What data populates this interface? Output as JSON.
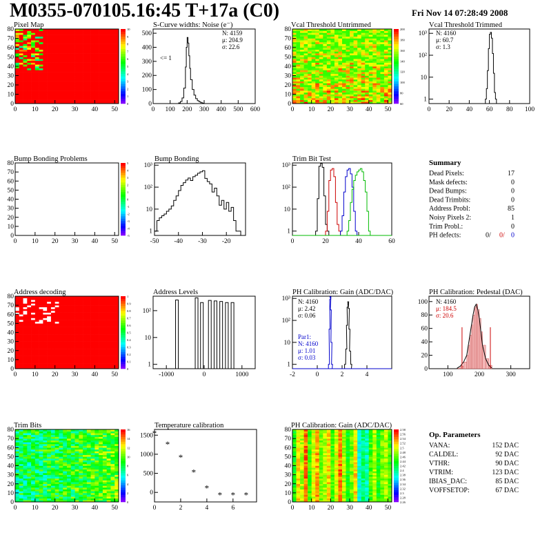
{
  "header": {
    "title": "M0355-070105.16:45 T+17a (C0)",
    "date": "Fri Nov 14 07:28:49 2008"
  },
  "panels": {
    "pixel_map": {
      "title": "Pixel Map",
      "type": "heatmap",
      "xticks": [
        "0",
        "10",
        "20",
        "30",
        "40",
        "50"
      ],
      "yticks": [
        "0",
        "10",
        "20",
        "30",
        "40",
        "50",
        "60",
        "70",
        "80"
      ],
      "zticks": [
        "0",
        "1",
        "2",
        "3",
        "4",
        "5",
        "6",
        "7",
        "8",
        "9",
        "10"
      ],
      "fill": "#ff0000",
      "noise_region": "left columns rows 40-80"
    },
    "scurve": {
      "title": "S-Curve widths: Noise (e⁻)",
      "type": "histogram",
      "xticks": [
        "0",
        "100",
        "200",
        "300",
        "400",
        "500",
        "600"
      ],
      "yticks": [
        "0",
        "100",
        "200",
        "300",
        "400",
        "500"
      ],
      "stats": [
        "N: 4159",
        "μ: 204.9",
        "σ: 22.6"
      ],
      "annotation": "<= 1",
      "chart_data": {
        "x": [
          150,
          160,
          170,
          180,
          190,
          195,
          200,
          205,
          210,
          215,
          220,
          230,
          240,
          250,
          260,
          270,
          280,
          290,
          300
        ],
        "values": [
          5,
          15,
          40,
          110,
          260,
          400,
          470,
          430,
          340,
          250,
          170,
          100,
          60,
          35,
          20,
          12,
          6,
          3,
          0
        ]
      }
    },
    "vcal_untrimmed": {
      "title": "Vcal Threshold Untrimmed",
      "type": "heatmap",
      "xticks": [
        "0",
        "10",
        "20",
        "30",
        "40",
        "50"
      ],
      "yticks": [
        "0",
        "10",
        "20",
        "30",
        "40",
        "50",
        "60",
        "70",
        "80"
      ],
      "zticks": [
        "60",
        "80",
        "100",
        "120",
        "140",
        "160",
        "180",
        "200"
      ]
    },
    "vcal_trimmed": {
      "title": "Vcal Threshold Trimmed",
      "type": "histogram",
      "log": true,
      "xticks": [
        "0",
        "20",
        "40",
        "60",
        "80",
        "100"
      ],
      "yticks": [
        "1",
        "10",
        "10²",
        "10³"
      ],
      "stats": [
        "N: 4160",
        "μ: 60.7",
        "σ:  1.3"
      ],
      "chart_data": {
        "x": [
          56,
          57,
          58,
          59,
          60,
          61,
          62,
          63,
          64,
          65,
          66
        ],
        "values": [
          1,
          3,
          20,
          200,
          900,
          1100,
          600,
          120,
          15,
          2,
          1
        ]
      }
    },
    "bump_problems": {
      "title": "Bump Bonding Problems",
      "type": "heatmap",
      "xticks": [
        "0",
        "10",
        "20",
        "30",
        "40",
        "50"
      ],
      "yticks": [
        "0",
        "10",
        "20",
        "30",
        "40",
        "50",
        "60",
        "70",
        "80"
      ],
      "zticks": [
        "-5",
        "-4",
        "-3",
        "-2",
        "-1",
        "0",
        "1",
        "2",
        "3",
        "4",
        "5"
      ]
    },
    "bump_bonding": {
      "title": "Bump Bonding",
      "type": "histogram",
      "log": true,
      "xticks": [
        "-50",
        "-40",
        "-30",
        "-20"
      ],
      "yticks": [
        "1",
        "10",
        "10²",
        "10³"
      ],
      "chart_data": {
        "x": [
          -50,
          -49,
          -48,
          -47,
          -46,
          -45,
          -44,
          -43,
          -42,
          -41,
          -40,
          -39,
          -38,
          -37,
          -36,
          -35,
          -34,
          -33,
          -32,
          -31,
          -30,
          -29,
          -28,
          -27,
          -26,
          -25,
          -24,
          -23,
          -22,
          -21,
          -20,
          -19,
          -18,
          -17,
          -16,
          -15
        ],
        "values": [
          1,
          3,
          4,
          5,
          6,
          8,
          10,
          14,
          25,
          40,
          70,
          120,
          160,
          210,
          260,
          200,
          300,
          350,
          430,
          500,
          560,
          250,
          180,
          140,
          60,
          90,
          40,
          15,
          25,
          10,
          20,
          8,
          12,
          3,
          1,
          1
        ]
      }
    },
    "trim_bit_test": {
      "title": "Trim Bit Test",
      "type": "histogram",
      "log": true,
      "xticks": [
        "0",
        "20",
        "40",
        "60"
      ],
      "yticks": [
        "1",
        "10",
        "10²",
        "10³"
      ],
      "chart_data": {
        "series": [
          {
            "color": "#000000",
            "x": [
              14,
              15,
              16,
              17,
              18,
              19,
              20,
              21
            ],
            "values": [
              1,
              30,
              900,
              1200,
              800,
              40,
              2,
              1
            ]
          },
          {
            "color": "#cc0000",
            "x": [
              20,
              21,
              22,
              23,
              24,
              25,
              26,
              27,
              28
            ],
            "values": [
              1,
              8,
              200,
              600,
              700,
              300,
              20,
              2,
              1
            ]
          },
          {
            "color": "#0000cc",
            "x": [
              29,
              30,
              31,
              32,
              33,
              34,
              35,
              36,
              37,
              38
            ],
            "values": [
              1,
              5,
              60,
              300,
              600,
              700,
              400,
              100,
              8,
              1
            ]
          },
          {
            "color": "#00bb00",
            "x": [
              33,
              34,
              35,
              36,
              37,
              38,
              39,
              40,
              41,
              42,
              43,
              44,
              45,
              46
            ],
            "values": [
              1,
              3,
              20,
              80,
              200,
              350,
              500,
              600,
              700,
              500,
              200,
              60,
              8,
              1
            ]
          }
        ]
      }
    },
    "summary": {
      "title": "Summary",
      "rows": [
        {
          "label": "Dead Pixels:",
          "value": "17"
        },
        {
          "label": "Mask defects:",
          "value": "0"
        },
        {
          "label": "Dead Bumps:",
          "value": "0"
        },
        {
          "label": "Dead Trimbits:",
          "value": "0"
        },
        {
          "label": "Address Probl:",
          "value": "85"
        },
        {
          "label": "Noisy Pixels 2:",
          "value": "1"
        },
        {
          "label": "Trim Probl.:",
          "value": "0"
        }
      ],
      "ph_defects": {
        "label": "PH defects:",
        "v1": "0/",
        "v2": "0/",
        "v3": "0",
        "c2": "#cc0000",
        "c3": "#0000cc"
      }
    },
    "address_decoding": {
      "title": "Address decoding",
      "type": "heatmap",
      "xticks": [
        "0",
        "10",
        "20",
        "30",
        "40",
        "50"
      ],
      "yticks": [
        "0",
        "10",
        "20",
        "30",
        "40",
        "50",
        "60",
        "70",
        "80"
      ],
      "zticks": [
        "0",
        "0.1",
        "0.2",
        "0.3",
        "0.4",
        "0.5",
        "0.6",
        "0.7",
        "0.8",
        "0.9",
        "1"
      ]
    },
    "address_levels": {
      "title": "Address Levels",
      "type": "histogram",
      "log": true,
      "xticks": [
        "-1000",
        "0",
        "1000"
      ],
      "yticks": [
        "1",
        "10",
        "10²"
      ],
      "chart_data": {
        "peaks": [
          -720,
          -200,
          -60,
          150,
          300,
          450,
          600,
          750
        ],
        "heights": [
          250,
          300,
          200,
          240,
          230,
          220,
          200,
          200
        ]
      }
    },
    "ph_gain_hist": {
      "title": "PH Calibration: Gain (ADC/DAC)",
      "type": "histogram",
      "log": true,
      "xticks": [
        "-2",
        "0",
        "2",
        "4"
      ],
      "yticks": [
        "1",
        "10",
        "10²",
        "10³"
      ],
      "stats": [
        "N: 4160",
        "μ: 2.42",
        "σ: 0.06"
      ],
      "stats2": [
        "Par1:",
        "N: 4160",
        "μ: 1.01",
        "σ: 0.03"
      ],
      "stats2_color": "#0000cc",
      "chart_data": {
        "series": [
          {
            "color": "#000000",
            "x": [
              2.2,
              2.3,
              2.35,
              2.4,
              2.45,
              2.5,
              2.55,
              2.6,
              2.7
            ],
            "values": [
              1,
              5,
              60,
              400,
              700,
              350,
              40,
              4,
              1
            ]
          },
          {
            "color": "#0000cc",
            "x": [
              0.9,
              0.95,
              1.0,
              1.02,
              1.05,
              1.1,
              1.15
            ],
            "values": [
              1,
              40,
              900,
              1200,
              300,
              10,
              1
            ]
          }
        ]
      }
    },
    "ph_pedestal": {
      "title": "PH Calibration: Pedestal (DAC)",
      "type": "histogram",
      "xticks": [
        "100",
        "200",
        "300"
      ],
      "yticks": [
        "0",
        "20",
        "40",
        "60",
        "80",
        "100"
      ],
      "stats": [
        "N: 4160",
        "μ: 184.5",
        "σ: 20.6"
      ],
      "chart_data": {
        "x": [
          130,
          140,
          150,
          160,
          165,
          170,
          175,
          180,
          185,
          190,
          195,
          200,
          205,
          210,
          220,
          230,
          240
        ],
        "values": [
          1,
          4,
          10,
          20,
          35,
          50,
          65,
          80,
          92,
          96,
          88,
          75,
          55,
          35,
          15,
          5,
          1
        ],
        "markers": [
          145,
          235
        ]
      }
    },
    "trim_bits": {
      "title": "Trim Bits",
      "type": "heatmap",
      "xticks": [
        "0",
        "10",
        "20",
        "30",
        "40",
        "50"
      ],
      "yticks": [
        "0",
        "10",
        "20",
        "30",
        "40",
        "50",
        "60",
        "70",
        "80"
      ],
      "zticks": [
        "0",
        "2",
        "4",
        "6",
        "8",
        "10",
        "12",
        "14",
        "16"
      ]
    },
    "temperature": {
      "title": "Temperature calibration",
      "type": "scatter",
      "xticks": [
        "0",
        "2",
        "4",
        "6"
      ],
      "yticks": [
        "0",
        "500",
        "1000",
        "1500"
      ],
      "chart_data": {
        "x": [
          0,
          1,
          2,
          3,
          4,
          5,
          6,
          7
        ],
        "values": [
          1560,
          1270,
          930,
          540,
          120,
          -60,
          -60,
          -60
        ]
      }
    },
    "ph_gain_map": {
      "title": "PH Calibration: Gain (ADC/DAC)",
      "type": "heatmap",
      "xticks": [
        "0",
        "10",
        "20",
        "30",
        "40",
        "50"
      ],
      "yticks": [
        "0",
        "10",
        "20",
        "30",
        "40",
        "50",
        "60",
        "70",
        "80"
      ],
      "zticks": [
        "2.26",
        "2.28",
        "2.3",
        "2.32",
        "2.34",
        "2.36",
        "2.38",
        "2.4",
        "2.42",
        "2.44",
        "2.46",
        "2.48",
        "2.5",
        "2.52",
        "2.54",
        "2.56",
        "2.58"
      ]
    },
    "op_params": {
      "title": "Op. Parameters",
      "rows": [
        {
          "label": "VANA:",
          "value": "152 DAC"
        },
        {
          "label": "CALDEL:",
          "value": "92 DAC"
        },
        {
          "label": "VTHR:",
          "value": "90 DAC"
        },
        {
          "label": "VTRIM:",
          "value": "123 DAC"
        },
        {
          "label": "IBIAS_DAC:",
          "value": "85 DAC"
        },
        {
          "label": "VOFFSETOP:",
          "value": "67 DAC"
        }
      ]
    }
  }
}
